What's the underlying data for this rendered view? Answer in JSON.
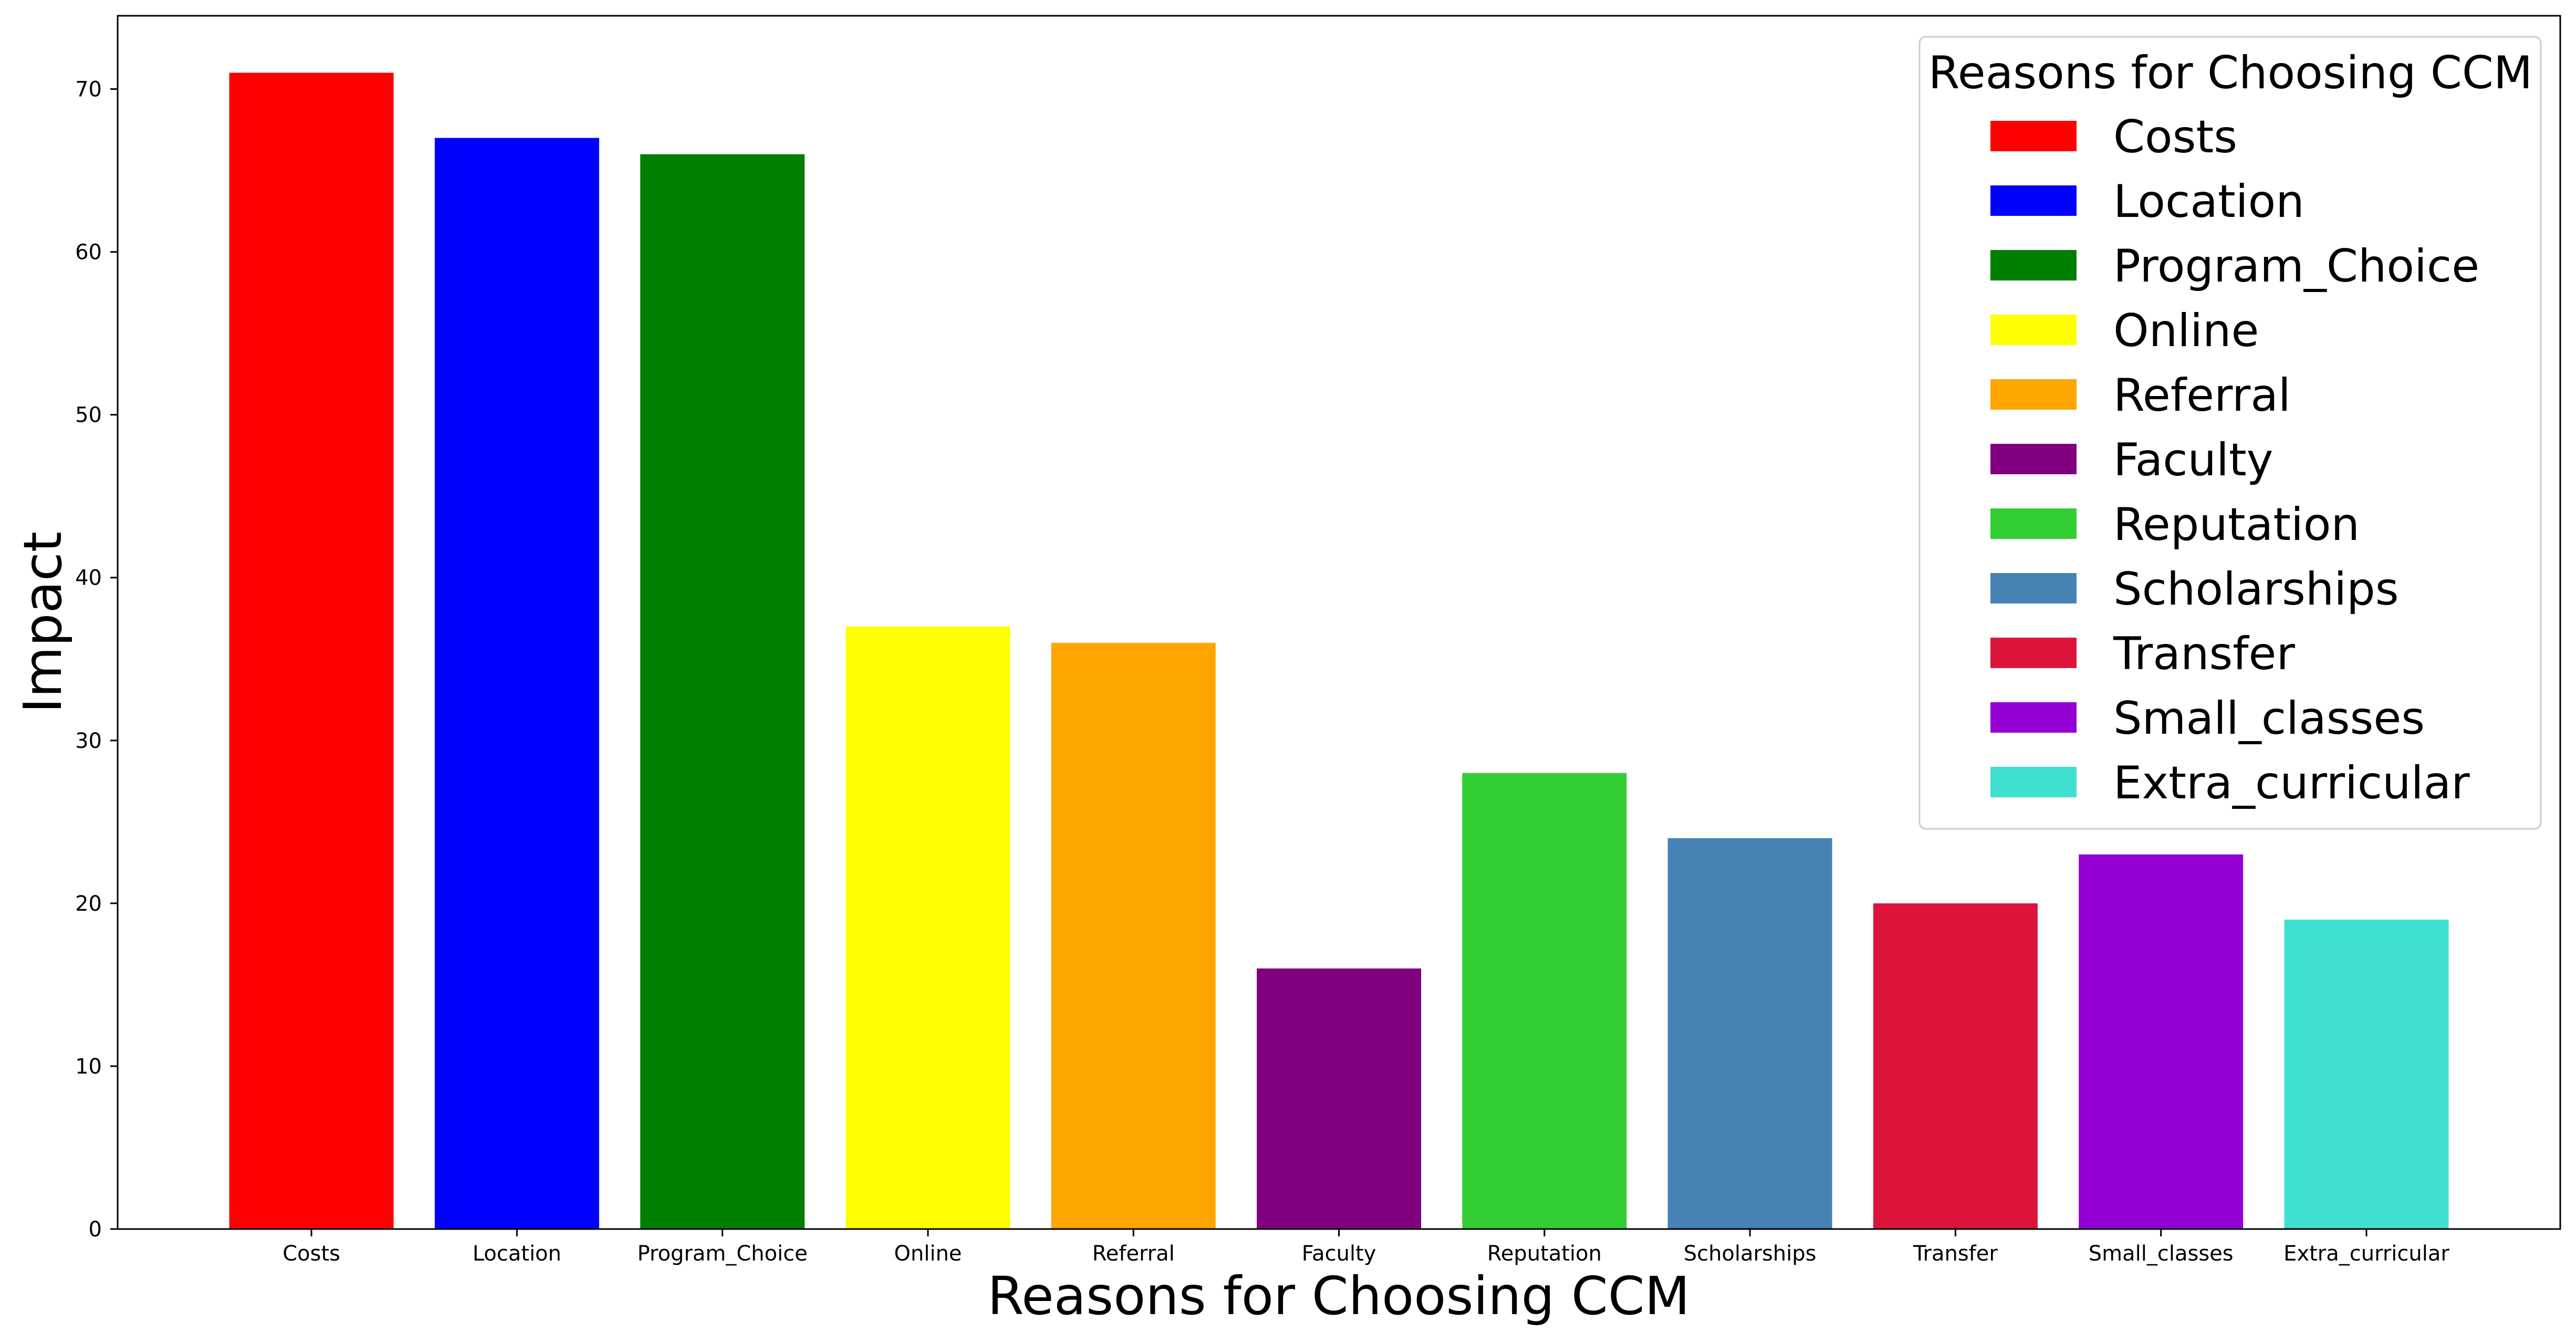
{
  "chart_data": {
    "type": "bar",
    "title": "",
    "xlabel": "Reasons for Choosing CCM",
    "ylabel": "Impact",
    "ylim": [
      0,
      74.5
    ],
    "yticks": [
      0,
      10,
      20,
      30,
      40,
      50,
      60,
      70
    ],
    "categories": [
      "Costs",
      "Location",
      "Program_Choice",
      "Online",
      "Referral",
      "Faculty",
      "Reputation",
      "Scholarships",
      "Transfer",
      "Small_classes",
      "Extra_curricular"
    ],
    "values": [
      71,
      67,
      66,
      37,
      36,
      16,
      28,
      24,
      20,
      23,
      19
    ],
    "colors": [
      "#ff0000",
      "#0000ff",
      "#008000",
      "#ffff00",
      "#ffa500",
      "#800080",
      "#32cd32",
      "#4682b4",
      "#dc143c",
      "#9400d3",
      "#40e0d0"
    ],
    "grid": false,
    "legend": {
      "title": "Reasons for Choosing CCM",
      "placement": "top-right",
      "entries": [
        "Costs",
        "Location",
        "Program_Choice",
        "Online",
        "Referral",
        "Faculty",
        "Reputation",
        "Scholarships",
        "Transfer",
        "Small_classes",
        "Extra_curricular"
      ]
    }
  }
}
